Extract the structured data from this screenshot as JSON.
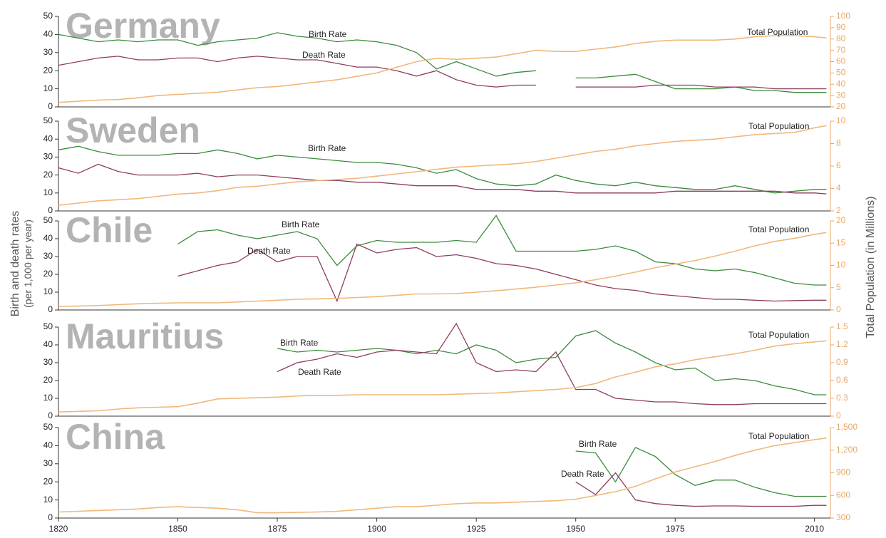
{
  "y_label": [
    "Birth and death rates",
    "(per 1,000 per year)"
  ],
  "y2_label": "Total Population (in Millions)",
  "chart_data": [
    {
      "type": "line",
      "title": "Germany",
      "x": [
        1820,
        1825,
        1830,
        1835,
        1840,
        1845,
        1850,
        1855,
        1860,
        1865,
        1870,
        1875,
        1880,
        1885,
        1890,
        1895,
        1900,
        1905,
        1910,
        1915,
        1920,
        1925,
        1930,
        1935,
        1940,
        1945,
        1950,
        1955,
        1960,
        1965,
        1970,
        1975,
        1980,
        1985,
        1990,
        1995,
        2000,
        2005,
        2010,
        2013
      ],
      "xlim": [
        1820,
        2014
      ],
      "ylim": [
        0,
        50
      ],
      "yticks": [
        0,
        10,
        20,
        30,
        40,
        50
      ],
      "y2lim": [
        20,
        100
      ],
      "y2ticks": [
        20,
        30,
        40,
        50,
        60,
        70,
        80,
        90,
        100
      ],
      "series": [
        {
          "name": "Birth Rate",
          "color": "#3b8b3b",
          "values": [
            40,
            38,
            36,
            37,
            36,
            37,
            37,
            34,
            36,
            37,
            38,
            41,
            39,
            38,
            36,
            37,
            36,
            34,
            30,
            21,
            25,
            21,
            17,
            19,
            20,
            null,
            16,
            16,
            17,
            18,
            14,
            10,
            10,
            10,
            11,
            9,
            9,
            8,
            8,
            8
          ]
        },
        {
          "name": "Death Rate",
          "color": "#8e3d5e",
          "values": [
            23,
            25,
            27,
            28,
            26,
            26,
            27,
            27,
            25,
            27,
            28,
            27,
            26,
            26,
            24,
            22,
            22,
            20,
            17,
            20,
            15,
            12,
            11,
            12,
            12,
            null,
            11,
            11,
            11,
            11,
            12,
            12,
            12,
            11,
            11,
            11,
            10,
            10,
            10,
            10
          ]
        },
        {
          "name": "Total Population",
          "color": "#f0b87a",
          "axis": "y2",
          "values": [
            24,
            25,
            26,
            26.5,
            28,
            30,
            31,
            32,
            33,
            35,
            37,
            38,
            40,
            42,
            44,
            47,
            50,
            55,
            60,
            63,
            62,
            63,
            64,
            67,
            70,
            69,
            69,
            71,
            73,
            76,
            78,
            79,
            79,
            79,
            80,
            82,
            83,
            83,
            82,
            81
          ]
        }
      ]
    },
    {
      "type": "line",
      "title": "Sweden",
      "x": [
        1820,
        1825,
        1830,
        1835,
        1840,
        1845,
        1850,
        1855,
        1860,
        1865,
        1870,
        1875,
        1880,
        1885,
        1890,
        1895,
        1900,
        1905,
        1910,
        1915,
        1920,
        1925,
        1930,
        1935,
        1940,
        1945,
        1950,
        1955,
        1960,
        1965,
        1970,
        1975,
        1980,
        1985,
        1990,
        1995,
        2000,
        2005,
        2010,
        2013
      ],
      "xlim": [
        1820,
        2014
      ],
      "ylim": [
        0,
        50
      ],
      "yticks": [
        0,
        10,
        20,
        30,
        40,
        50
      ],
      "y2lim": [
        2,
        10
      ],
      "y2ticks": [
        2,
        4,
        6,
        8,
        10
      ],
      "series": [
        {
          "name": "Birth Rate",
          "color": "#3b8b3b",
          "values": [
            34,
            36,
            33,
            31,
            31,
            31,
            32,
            32,
            34,
            32,
            29,
            31,
            30,
            29,
            28,
            27,
            27,
            26,
            24,
            21,
            23,
            18,
            15,
            14,
            15,
            20,
            17,
            15,
            14,
            16,
            14,
            13,
            12,
            12,
            14,
            12,
            10,
            11,
            12,
            12
          ]
        },
        {
          "name": null,
          "color": "#8e3d5e",
          "values": [
            24,
            21,
            26,
            22,
            20,
            20,
            20,
            21,
            19,
            20,
            20,
            19,
            18,
            17,
            17,
            16,
            16,
            15,
            14,
            14,
            14,
            12,
            12,
            12,
            11,
            11,
            10,
            10,
            10,
            10,
            10,
            11,
            11,
            11,
            11,
            11,
            11,
            10,
            10,
            9.5
          ]
        },
        {
          "name": "Total Population",
          "color": "#f0b87a",
          "axis": "y2",
          "values": [
            2.5,
            2.7,
            2.9,
            3.0,
            3.1,
            3.3,
            3.5,
            3.6,
            3.8,
            4.1,
            4.2,
            4.4,
            4.6,
            4.7,
            4.8,
            4.9,
            5.1,
            5.3,
            5.5,
            5.7,
            5.9,
            6.0,
            6.1,
            6.2,
            6.4,
            6.7,
            7.0,
            7.3,
            7.5,
            7.8,
            8.0,
            8.2,
            8.3,
            8.4,
            8.6,
            8.8,
            8.9,
            9.0,
            9.4,
            9.6
          ]
        }
      ]
    },
    {
      "type": "line",
      "title": "Chile",
      "x": [
        1820,
        1825,
        1830,
        1835,
        1840,
        1845,
        1850,
        1855,
        1860,
        1865,
        1870,
        1875,
        1880,
        1885,
        1890,
        1895,
        1900,
        1905,
        1910,
        1915,
        1920,
        1925,
        1930,
        1935,
        1940,
        1945,
        1950,
        1955,
        1960,
        1965,
        1970,
        1975,
        1980,
        1985,
        1990,
        1995,
        2000,
        2005,
        2010,
        2013
      ],
      "xlim": [
        1820,
        2014
      ],
      "ylim": [
        0,
        50
      ],
      "yticks": [
        0,
        10,
        20,
        30,
        40,
        50
      ],
      "y2lim": [
        0,
        20
      ],
      "y2ticks": [
        0,
        5,
        10,
        15,
        20
      ],
      "series": [
        {
          "name": "Birth Rate",
          "color": "#3b8b3b",
          "values": [
            null,
            null,
            null,
            null,
            null,
            null,
            37,
            44,
            45,
            42,
            40,
            42,
            44,
            40,
            25,
            36,
            39,
            38,
            38,
            38,
            39,
            38,
            53,
            33,
            33,
            33,
            33,
            34,
            36,
            33,
            27,
            26,
            23,
            22,
            23,
            21,
            18,
            15,
            14,
            14
          ]
        },
        {
          "name": "Death Rate",
          "color": "#8e3d5e",
          "values": [
            null,
            null,
            null,
            null,
            null,
            null,
            19,
            22,
            25,
            27,
            34,
            27,
            30,
            30,
            5,
            37,
            32,
            34,
            35,
            30,
            31,
            29,
            26,
            25,
            23,
            20,
            17,
            14,
            12,
            11,
            9,
            8,
            7,
            6,
            6,
            5.5,
            5,
            5.3,
            5.5,
            5.5
          ]
        },
        {
          "name": "Total Population",
          "color": "#f0b87a",
          "axis": "y2",
          "values": [
            0.8,
            0.9,
            1.0,
            1.2,
            1.4,
            1.5,
            1.6,
            1.6,
            1.6,
            1.8,
            2.0,
            2.2,
            2.4,
            2.5,
            2.6,
            2.8,
            3.0,
            3.3,
            3.6,
            3.6,
            3.7,
            4.0,
            4.3,
            4.7,
            5.1,
            5.6,
            6.1,
            6.8,
            7.6,
            8.5,
            9.5,
            10.3,
            11.1,
            12.1,
            13.2,
            14.4,
            15.4,
            16.1,
            17.0,
            17.4
          ]
        }
      ]
    },
    {
      "type": "line",
      "title": "Mauritius",
      "x": [
        1820,
        1825,
        1830,
        1835,
        1840,
        1845,
        1850,
        1855,
        1860,
        1865,
        1870,
        1875,
        1880,
        1885,
        1890,
        1895,
        1900,
        1905,
        1910,
        1915,
        1920,
        1925,
        1930,
        1935,
        1940,
        1945,
        1950,
        1955,
        1960,
        1965,
        1970,
        1975,
        1980,
        1985,
        1990,
        1995,
        2000,
        2005,
        2010,
        2013
      ],
      "xlim": [
        1820,
        2014
      ],
      "ylim": [
        0,
        50
      ],
      "yticks": [
        0,
        10,
        20,
        30,
        40,
        50
      ],
      "y2lim": [
        0,
        1.5
      ],
      "y2ticks": [
        0,
        0.3,
        0.6,
        0.9,
        1.2,
        1.5
      ],
      "series": [
        {
          "name": "Birth Rate",
          "color": "#3b8b3b",
          "values": [
            null,
            null,
            null,
            null,
            null,
            null,
            null,
            null,
            null,
            null,
            null,
            38,
            36,
            37,
            36,
            37,
            38,
            37,
            35,
            37,
            35,
            40,
            37,
            30,
            32,
            33,
            45,
            48,
            41,
            36,
            30,
            26,
            27,
            20,
            21,
            20,
            17,
            15,
            12,
            12
          ]
        },
        {
          "name": "Death Rate",
          "color": "#8e3d5e",
          "values": [
            null,
            null,
            null,
            null,
            null,
            null,
            null,
            null,
            null,
            null,
            null,
            25,
            30,
            32,
            35,
            33,
            36,
            37,
            36,
            35,
            52,
            30,
            25,
            26,
            25,
            36,
            15,
            15,
            10,
            9,
            8,
            8,
            7,
            6.5,
            6.5,
            7,
            7,
            7,
            7,
            7
          ]
        },
        {
          "name": "Total Population",
          "color": "#f0b87a",
          "axis": "y2",
          "values": [
            0.07,
            0.08,
            0.09,
            0.12,
            0.14,
            0.15,
            0.16,
            0.22,
            0.29,
            0.3,
            0.31,
            0.32,
            0.34,
            0.35,
            0.35,
            0.36,
            0.36,
            0.36,
            0.36,
            0.36,
            0.37,
            0.38,
            0.39,
            0.41,
            0.43,
            0.45,
            0.48,
            0.55,
            0.66,
            0.74,
            0.83,
            0.88,
            0.95,
            1.0,
            1.05,
            1.11,
            1.18,
            1.22,
            1.25,
            1.27
          ]
        }
      ]
    },
    {
      "type": "line",
      "title": "China",
      "x": [
        1820,
        1825,
        1830,
        1835,
        1840,
        1845,
        1850,
        1855,
        1860,
        1865,
        1870,
        1875,
        1880,
        1885,
        1890,
        1895,
        1900,
        1905,
        1910,
        1915,
        1920,
        1925,
        1930,
        1935,
        1940,
        1945,
        1950,
        1955,
        1960,
        1965,
        1970,
        1975,
        1980,
        1985,
        1990,
        1995,
        2000,
        2005,
        2010,
        2013
      ],
      "xlim": [
        1820,
        2014
      ],
      "xticks": [
        1820,
        1850,
        1875,
        1900,
        1925,
        1950,
        1975,
        2010
      ],
      "ylim": [
        0,
        50
      ],
      "yticks": [
        0,
        10,
        20,
        30,
        40,
        50
      ],
      "y2lim": [
        300,
        1500
      ],
      "y2ticks": [
        300,
        600,
        900,
        {
          "value": 1200,
          "label": "1,200"
        },
        {
          "value": 1500,
          "label": "1,500"
        }
      ],
      "series": [
        {
          "name": "Birth Rate",
          "color": "#3b8b3b",
          "values": [
            null,
            null,
            null,
            null,
            null,
            null,
            null,
            null,
            null,
            null,
            null,
            null,
            null,
            null,
            null,
            null,
            null,
            null,
            null,
            null,
            null,
            null,
            null,
            null,
            null,
            null,
            37,
            36,
            20,
            39,
            34,
            24,
            18,
            21,
            21,
            17,
            14,
            12,
            12,
            12
          ]
        },
        {
          "name": "Death Rate",
          "color": "#8e3d5e",
          "values": [
            null,
            null,
            null,
            null,
            null,
            null,
            null,
            null,
            null,
            null,
            null,
            null,
            null,
            null,
            null,
            null,
            null,
            null,
            null,
            null,
            null,
            null,
            null,
            null,
            null,
            null,
            20,
            13,
            25,
            10,
            8,
            7,
            6.5,
            6.7,
            6.7,
            6.5,
            6.5,
            6.5,
            7,
            7
          ]
        },
        {
          "name": "Total Population",
          "color": "#f0b87a",
          "axis": "y2",
          "values": [
            380,
            390,
            400,
            410,
            420,
            440,
            450,
            440,
            430,
            410,
            370,
            370,
            375,
            380,
            390,
            410,
            430,
            450,
            450,
            470,
            490,
            500,
            500,
            510,
            520,
            530,
            550,
            600,
            650,
            720,
            820,
            910,
            980,
            1050,
            1130,
            1200,
            1260,
            1300,
            1340,
            1360
          ]
        }
      ]
    }
  ]
}
